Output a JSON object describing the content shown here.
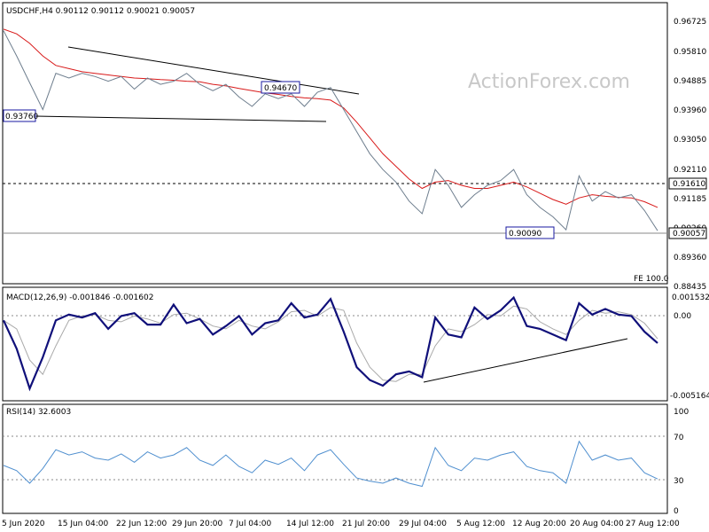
{
  "symbol_header": "USDCHF,H4  0.90112 0.90112 0.90021 0.90057",
  "watermark": "ActionForex.com",
  "colors": {
    "price": "#6e7e8e",
    "ma": "#d81a1a",
    "macd_main": "#10107a",
    "macd_signal": "#a9a9a9",
    "rsi": "#4f8fcf",
    "trendline": "#000000",
    "ref_line": "#000000",
    "price_box_border": "#1a1aa0"
  },
  "chart_data": [
    {
      "panel": "price",
      "type": "line",
      "title": "USDCHF,H4  0.90112 0.90112 0.90021 0.90057",
      "x_ticks": [
        "5 Jun 2020",
        "15 Jun 04:00",
        "22 Jun 12:00",
        "29 Jun 20:00",
        "7 Jul 04:00",
        "14 Jul 12:00",
        "21 Jul 20:00",
        "29 Jul 04:00",
        "5 Aug 12:00",
        "12 Aug 20:00",
        "20 Aug 04:00",
        "27 Aug 12:00"
      ],
      "y_ticks": [
        "0.96725",
        "0.95810",
        "0.94885",
        "0.93960",
        "0.93050",
        "0.92110",
        "0.91185",
        "0.90260",
        "0.89360",
        "0.88435"
      ],
      "ylim": [
        0.88435,
        0.9715
      ],
      "grid": false,
      "x": [
        0,
        2,
        4,
        6,
        8,
        10,
        12,
        14,
        16,
        18,
        20,
        22,
        24,
        26,
        28,
        30,
        32,
        34,
        36,
        38,
        40,
        42,
        44,
        46,
        48,
        50,
        52,
        54,
        56,
        58,
        60,
        62,
        64,
        66,
        68,
        70,
        72,
        74,
        76,
        78,
        80,
        82,
        84,
        86,
        88,
        90,
        92,
        94,
        96,
        98,
        100
      ],
      "series": [
        {
          "role": "price",
          "values": [
            0.964,
            0.956,
            0.9475,
            0.939,
            0.9505,
            0.949,
            0.9505,
            0.9495,
            0.948,
            0.9495,
            0.9455,
            0.949,
            0.947,
            0.948,
            0.9505,
            0.947,
            0.945,
            0.947,
            0.943,
            0.94,
            0.944,
            0.9425,
            0.944,
            0.94,
            0.9445,
            0.946,
            0.939,
            0.932,
            0.925,
            0.92,
            0.916,
            0.91,
            0.906,
            0.92,
            0.915,
            0.908,
            0.912,
            0.915,
            0.9165,
            0.92,
            0.912,
            0.908,
            0.905,
            0.9009,
            0.918,
            0.91,
            0.913,
            0.911,
            0.912,
            0.907,
            0.9006
          ]
        },
        {
          "role": "moving-average",
          "values": [
            0.9645,
            0.963,
            0.96,
            0.956,
            0.953,
            0.952,
            0.951,
            0.9505,
            0.95,
            0.9495,
            0.949,
            0.9488,
            0.9485,
            0.9483,
            0.948,
            0.9478,
            0.947,
            0.9465,
            0.9457,
            0.945,
            0.9443,
            0.9438,
            0.9432,
            0.9427,
            0.9425,
            0.942,
            0.9395,
            0.935,
            0.93,
            0.925,
            0.921,
            0.917,
            0.914,
            0.916,
            0.9165,
            0.915,
            0.914,
            0.914,
            0.915,
            0.916,
            0.9145,
            0.9125,
            0.9105,
            0.909,
            0.911,
            0.912,
            0.9115,
            0.9112,
            0.911,
            0.9098,
            0.908
          ]
        }
      ],
      "levels": [
        {
          "label": "0.93760",
          "value": 0.9376
        },
        {
          "label": "0.94670",
          "value": 0.9467
        },
        {
          "label": "0.91610",
          "value": 0.9161
        },
        {
          "label": "0.90090",
          "value": 0.9009
        },
        {
          "label": "0.90057",
          "value": 0.90057
        }
      ],
      "annotations": [
        "FE 100.0"
      ]
    },
    {
      "panel": "macd",
      "type": "line",
      "title": "MACD(12,26,9) -0.001846 -0.001602",
      "y_ticks": [
        "0.001532",
        "0.00",
        "-0.005164"
      ],
      "ylim": [
        -0.0058,
        0.002
      ],
      "x": [
        0,
        2,
        4,
        6,
        8,
        10,
        12,
        14,
        16,
        18,
        20,
        22,
        24,
        26,
        28,
        30,
        32,
        34,
        36,
        38,
        40,
        42,
        44,
        46,
        48,
        50,
        52,
        54,
        56,
        58,
        60,
        62,
        64,
        66,
        68,
        70,
        72,
        74,
        76,
        78,
        80,
        82,
        84,
        86,
        88,
        90,
        92,
        94,
        96,
        98,
        100
      ],
      "series": [
        {
          "role": "macd-main",
          "values": [
            -0.0002,
            -0.0022,
            -0.005,
            -0.0028,
            -0.0002,
            0.0002,
            0.0,
            0.0003,
            -0.0008,
            0.0001,
            0.0003,
            -0.0005,
            -0.0005,
            0.0009,
            -0.0004,
            -0.0001,
            -0.0012,
            -0.0006,
            0.0001,
            -0.0012,
            -0.0004,
            -0.0002,
            0.001,
            0.0,
            0.0002,
            0.0013,
            -0.001,
            -0.0035,
            -0.0044,
            -0.0048,
            -0.004,
            -0.0038,
            -0.0042,
            0.0,
            -0.0012,
            -0.0014,
            0.0007,
            -0.0001,
            0.0005,
            0.0014,
            -0.0006,
            -0.0008,
            -0.0012,
            -0.0016,
            0.001,
            0.0002,
            0.0006,
            0.0002,
            0.0001,
            -0.001,
            -0.0018
          ]
        },
        {
          "role": "macd-signal",
          "values": [
            -0.0002,
            -0.0008,
            -0.003,
            -0.004,
            -0.002,
            -0.0002,
            0.0001,
            0.0002,
            -0.0002,
            -0.0003,
            0.0001,
            -0.0001,
            -0.0004,
            0.0002,
            0.0003,
            -0.0001,
            -0.0006,
            -0.0008,
            -0.0002,
            -0.0006,
            -0.0008,
            -0.0003,
            0.0004,
            0.0005,
            0.0001,
            0.0007,
            0.0005,
            -0.0018,
            -0.0035,
            -0.0044,
            -0.0045,
            -0.004,
            -0.004,
            -0.002,
            -0.0008,
            -0.001,
            -0.0005,
            0.0002,
            0.0001,
            0.0008,
            0.0006,
            -0.0003,
            -0.0008,
            -0.0012,
            -0.0002,
            0.0005,
            0.0003,
            0.0004,
            0.0002,
            -0.0004,
            -0.0015
          ]
        }
      ],
      "reference": {
        "label": "0.00",
        "value": 0
      }
    },
    {
      "panel": "rsi",
      "type": "line",
      "title": "RSI(14) 32.6003",
      "y_ticks": [
        "100",
        "70",
        "30",
        "0"
      ],
      "ylim": [
        0,
        100
      ],
      "x": [
        0,
        2,
        4,
        6,
        8,
        10,
        12,
        14,
        16,
        18,
        20,
        22,
        24,
        26,
        28,
        30,
        32,
        34,
        36,
        38,
        40,
        42,
        44,
        46,
        48,
        50,
        52,
        54,
        56,
        58,
        60,
        62,
        64,
        66,
        68,
        70,
        72,
        74,
        76,
        78,
        80,
        82,
        84,
        86,
        88,
        90,
        92,
        94,
        96,
        98,
        100
      ],
      "series": [
        {
          "role": "rsi",
          "values": [
            45,
            40,
            28,
            42,
            60,
            55,
            58,
            52,
            50,
            56,
            48,
            58,
            52,
            55,
            62,
            50,
            45,
            55,
            44,
            38,
            50,
            46,
            52,
            40,
            55,
            60,
            46,
            33,
            30,
            28,
            33,
            28,
            25,
            62,
            45,
            40,
            52,
            50,
            55,
            58,
            44,
            40,
            38,
            28,
            68,
            50,
            55,
            50,
            52,
            38,
            32
          ]
        }
      ],
      "levels": [
        {
          "label": "70",
          "value": 70
        },
        {
          "label": "30",
          "value": 30
        }
      ]
    }
  ]
}
